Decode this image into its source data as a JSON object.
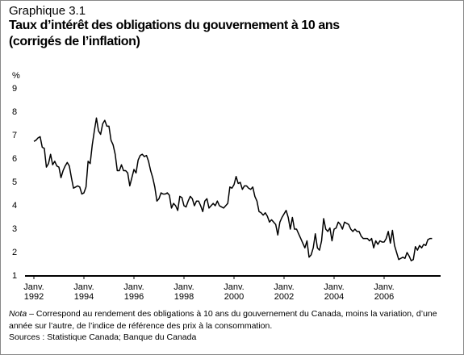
{
  "chart_data": {
    "type": "line",
    "pretitle": "Graphique 3.1",
    "title": [
      "Taux d’intérêt des obligations du gouvernement à 10 ans",
      "(corrigés de l’inflation)"
    ],
    "y_label": "%",
    "ylim": [
      1,
      9
    ],
    "yticks": [
      1,
      2,
      3,
      4,
      5,
      6,
      7,
      8,
      9
    ],
    "grid": false,
    "x": [
      "1992-01",
      "1992-02",
      "1992-03",
      "1992-04",
      "1992-05",
      "1992-06",
      "1992-07",
      "1992-08",
      "1992-09",
      "1992-10",
      "1992-11",
      "1992-12",
      "1993-01",
      "1993-02",
      "1993-03",
      "1993-04",
      "1993-05",
      "1993-06",
      "1993-07",
      "1993-08",
      "1993-09",
      "1993-10",
      "1993-11",
      "1993-12",
      "1994-01",
      "1994-02",
      "1994-03",
      "1994-04",
      "1994-05",
      "1994-06",
      "1994-07",
      "1994-08",
      "1994-09",
      "1994-10",
      "1994-11",
      "1994-12",
      "1995-01",
      "1995-02",
      "1995-03",
      "1995-04",
      "1995-05",
      "1995-06",
      "1995-07",
      "1995-08",
      "1995-09",
      "1995-10",
      "1995-11",
      "1995-12",
      "1996-01",
      "1996-02",
      "1996-03",
      "1996-04",
      "1996-05",
      "1996-06",
      "1996-07",
      "1996-08",
      "1996-09",
      "1996-10",
      "1996-11",
      "1996-12",
      "1997-01",
      "1997-02",
      "1997-03",
      "1997-04",
      "1997-05",
      "1997-06",
      "1997-07",
      "1997-08",
      "1997-09",
      "1997-10",
      "1997-11",
      "1997-12",
      "1998-01",
      "1998-02",
      "1998-03",
      "1998-04",
      "1998-05",
      "1998-06",
      "1998-07",
      "1998-08",
      "1998-09",
      "1998-10",
      "1998-11",
      "1998-12",
      "1999-01",
      "1999-02",
      "1999-03",
      "1999-04",
      "1999-05",
      "1999-06",
      "1999-07",
      "1999-08",
      "1999-09",
      "1999-10",
      "1999-11",
      "1999-12",
      "2000-01",
      "2000-02",
      "2000-03",
      "2000-04",
      "2000-05",
      "2000-06",
      "2000-07",
      "2000-08",
      "2000-09",
      "2000-10",
      "2000-11",
      "2000-12",
      "2001-01",
      "2001-02",
      "2001-03",
      "2001-04",
      "2001-05",
      "2001-06",
      "2001-07",
      "2001-08",
      "2001-09",
      "2001-10",
      "2001-11",
      "2001-12",
      "2002-01",
      "2002-02",
      "2002-03",
      "2002-04",
      "2002-05",
      "2002-06",
      "2002-07",
      "2002-08",
      "2002-09",
      "2002-10",
      "2002-11",
      "2002-12",
      "2003-01",
      "2003-02",
      "2003-03",
      "2003-04",
      "2003-05",
      "2003-06",
      "2003-07",
      "2003-08",
      "2003-09",
      "2003-10",
      "2003-11",
      "2003-12",
      "2004-01",
      "2004-02",
      "2004-03",
      "2004-04",
      "2004-05",
      "2004-06",
      "2004-07",
      "2004-08",
      "2004-09",
      "2004-10",
      "2004-11",
      "2004-12",
      "2005-01",
      "2005-02",
      "2005-03",
      "2005-04",
      "2005-05",
      "2005-06",
      "2005-07",
      "2005-08",
      "2005-09",
      "2005-10",
      "2005-11",
      "2005-12",
      "2006-01",
      "2006-02",
      "2006-03",
      "2006-04",
      "2006-05",
      "2006-06",
      "2006-07",
      "2006-08",
      "2006-09",
      "2006-10",
      "2006-11",
      "2006-12",
      "2007-01",
      "2007-02",
      "2007-03",
      "2007-04",
      "2007-05",
      "2007-06",
      "2007-07",
      "2007-08",
      "2007-09",
      "2007-10",
      "2007-11",
      "2007-12"
    ],
    "xticks": [
      {
        "value": "1992-01",
        "label": [
          "Janv.",
          "1992"
        ]
      },
      {
        "value": "1994-01",
        "label": [
          "Janv.",
          "1994"
        ]
      },
      {
        "value": "1996-01",
        "label": [
          "Janv.",
          "1996"
        ]
      },
      {
        "value": "1998-01",
        "label": [
          "Janv.",
          "1998"
        ]
      },
      {
        "value": "2000-01",
        "label": [
          "Janv.",
          "2000"
        ]
      },
      {
        "value": "2002-01",
        "label": [
          "Janv.",
          "2002"
        ]
      },
      {
        "value": "2004-01",
        "label": [
          "Janv.",
          "2004"
        ]
      },
      {
        "value": "2006-01",
        "label": [
          "Janv.",
          "2006"
        ]
      }
    ],
    "series": [
      {
        "color": "#000000",
        "values": [
          6.75,
          6.8,
          6.9,
          6.95,
          6.5,
          6.45,
          5.65,
          5.8,
          6.2,
          5.75,
          5.9,
          5.7,
          5.65,
          5.2,
          5.5,
          5.7,
          5.85,
          5.7,
          5.2,
          4.75,
          4.8,
          4.85,
          4.8,
          4.5,
          4.55,
          4.8,
          5.9,
          5.8,
          6.6,
          7.2,
          7.75,
          7.2,
          7.05,
          7.5,
          7.65,
          7.4,
          7.4,
          6.8,
          6.6,
          6.2,
          5.5,
          5.5,
          5.75,
          5.5,
          5.5,
          5.4,
          4.85,
          5.2,
          5.55,
          5.4,
          5.95,
          6.15,
          6.2,
          6.1,
          6.15,
          5.9,
          5.5,
          5.2,
          4.8,
          4.2,
          4.3,
          4.55,
          4.5,
          4.5,
          4.55,
          4.45,
          3.9,
          4.1,
          4.0,
          3.8,
          4.4,
          4.35,
          4.0,
          3.95,
          4.2,
          4.4,
          4.3,
          4.0,
          4.2,
          4.2,
          4.0,
          3.75,
          4.2,
          4.3,
          3.9,
          4.0,
          4.1,
          4.0,
          4.2,
          4.0,
          3.95,
          3.9,
          4.0,
          4.1,
          4.8,
          4.75,
          4.9,
          5.25,
          4.95,
          5.0,
          4.7,
          4.85,
          4.85,
          4.75,
          4.7,
          4.8,
          4.4,
          4.2,
          3.75,
          3.7,
          3.6,
          3.7,
          3.55,
          3.3,
          3.4,
          3.3,
          3.2,
          2.75,
          3.3,
          3.5,
          3.65,
          3.8,
          3.5,
          3.0,
          3.5,
          3.0,
          3.0,
          2.8,
          2.6,
          2.4,
          2.2,
          2.5,
          1.8,
          1.9,
          2.2,
          2.8,
          2.2,
          2.1,
          2.5,
          3.45,
          3.0,
          2.9,
          3.05,
          2.5,
          3.0,
          3.05,
          3.3,
          3.2,
          3.0,
          3.3,
          3.25,
          3.2,
          3.0,
          2.9,
          3.0,
          2.9,
          2.9,
          2.7,
          2.6,
          2.6,
          2.6,
          2.5,
          2.6,
          2.2,
          2.5,
          2.35,
          2.5,
          2.45,
          2.45,
          2.6,
          2.9,
          2.4,
          2.95,
          2.3,
          2.0,
          1.7,
          1.75,
          1.8,
          1.75,
          2.0,
          1.85,
          1.65,
          1.7,
          2.25,
          2.1,
          2.3,
          2.2,
          2.35,
          2.3,
          2.55,
          2.6,
          2.6
        ]
      }
    ],
    "note_label": "Nota",
    "note": "– Correspond au rendement des obligations à 10 ans du gouvernement du Canada, moins la variation, d’une année sur l’autre, de l’indice de référence des prix à la consommation.",
    "source": "Sources : Statistique Canada; Banque du Canada"
  }
}
